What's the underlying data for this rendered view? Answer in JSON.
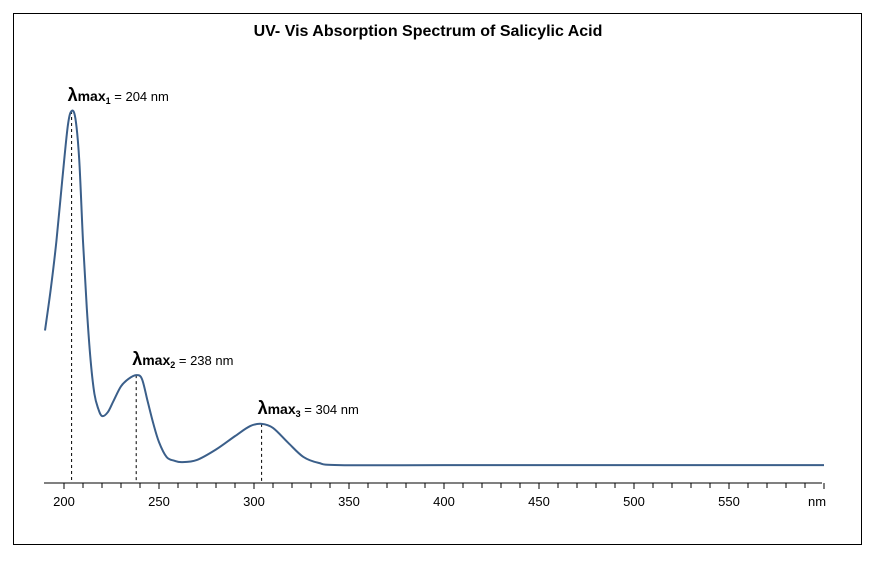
{
  "chart_data": {
    "type": "line",
    "title": "UV- Vis Absorption Spectrum of Salicylic Acid",
    "xlabel": "nm",
    "ylabel": "",
    "xlim": [
      190,
      600
    ],
    "ylim": [
      0,
      1.0
    ],
    "grid": false,
    "x_ticks": [
      200,
      250,
      300,
      350,
      400,
      450,
      500,
      550
    ],
    "line_color": "#3b5f8a",
    "series": [
      {
        "name": "Salicylic Acid",
        "x": [
          190,
          193,
          196,
          199,
          202,
          204,
          206,
          208,
          210,
          212,
          214,
          216,
          218,
          220,
          223,
          226,
          230,
          234,
          238,
          241,
          244,
          247,
          250,
          254,
          258,
          262,
          270,
          280,
          290,
          298,
          304,
          310,
          318,
          326,
          334,
          345,
          400,
          500,
          600
        ],
        "y": [
          0.41,
          0.52,
          0.65,
          0.81,
          0.96,
          1.0,
          0.98,
          0.87,
          0.65,
          0.47,
          0.33,
          0.24,
          0.2,
          0.18,
          0.19,
          0.22,
          0.26,
          0.28,
          0.29,
          0.28,
          0.22,
          0.16,
          0.11,
          0.07,
          0.06,
          0.056,
          0.062,
          0.09,
          0.126,
          0.153,
          0.159,
          0.148,
          0.108,
          0.07,
          0.054,
          0.048,
          0.048,
          0.048,
          0.048
        ]
      }
    ],
    "annotations": [
      {
        "symbol": "λ",
        "label": "max",
        "sub": "1",
        "text": " = 204 nm",
        "x": 204,
        "y": 1.0
      },
      {
        "symbol": "λ",
        "label": "max",
        "sub": "2",
        "text": " = 238 nm",
        "x": 238,
        "y": 0.29
      },
      {
        "symbol": "λ",
        "label": "max",
        "sub": "3",
        "text": " = 304 nm",
        "x": 304,
        "y": 0.159
      }
    ]
  }
}
